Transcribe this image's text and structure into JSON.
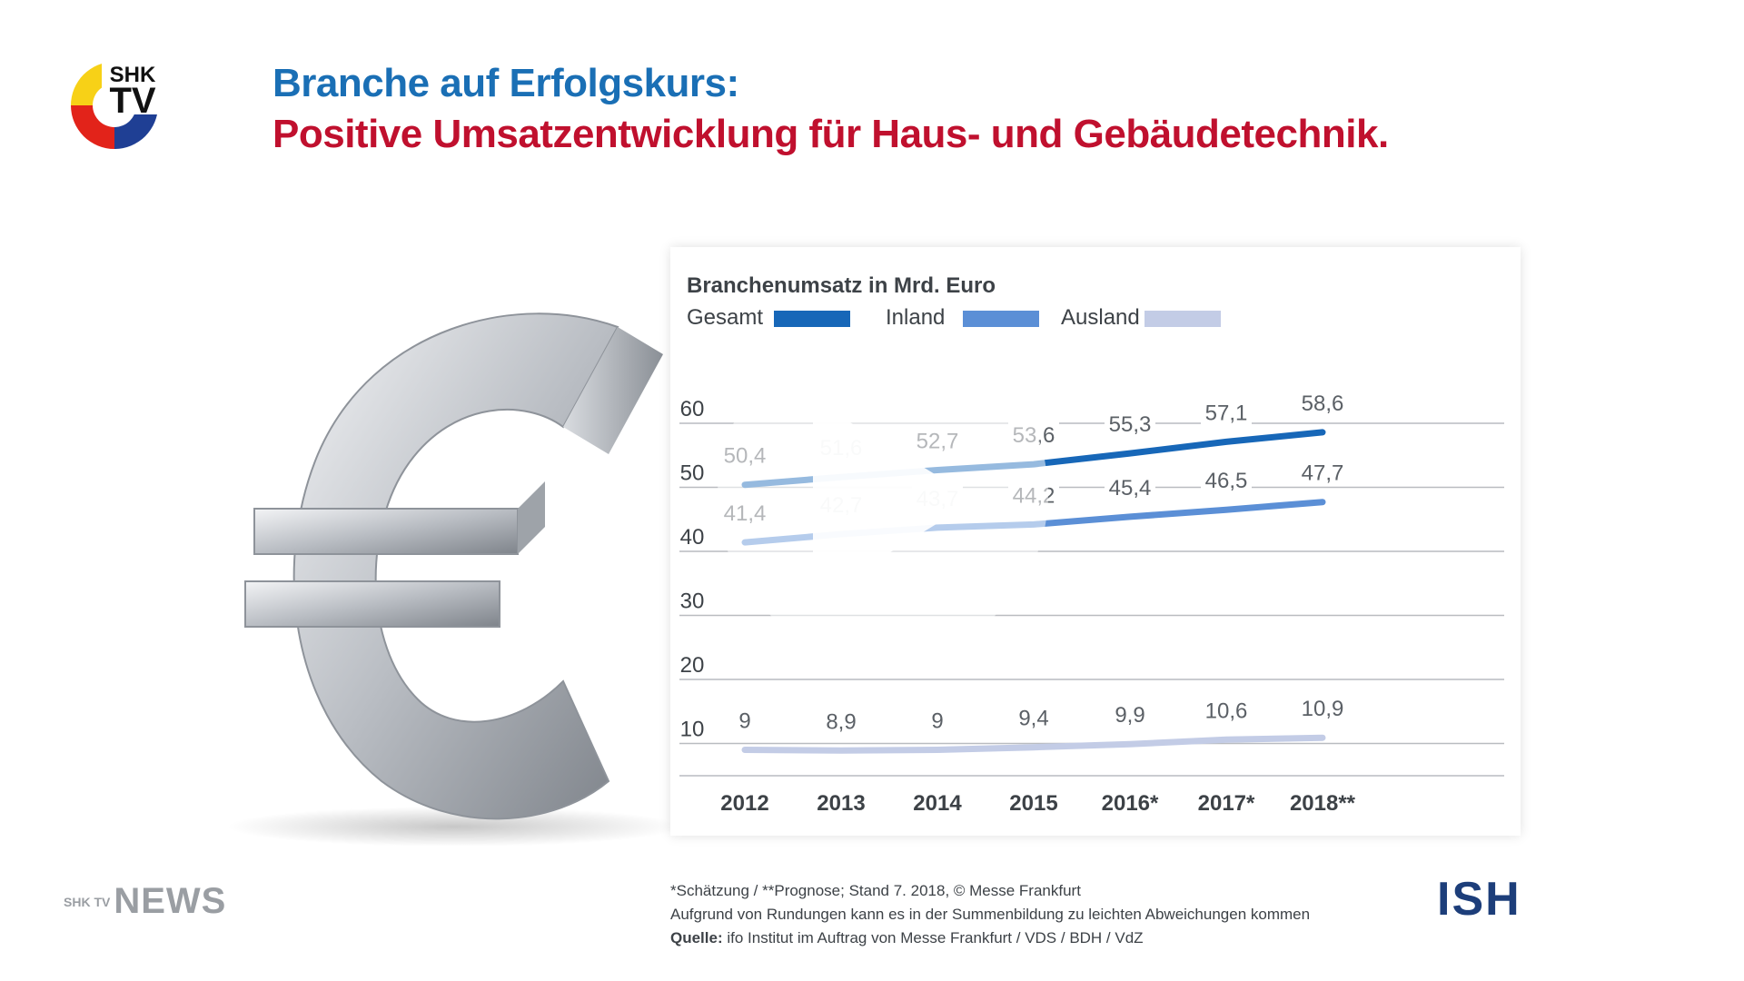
{
  "header": {
    "logo": "SHK TV",
    "title_line1": "Branche auf Erfolgskurs:",
    "title_line2": "Positive Umsatzentwicklung für Haus- und Gebäudetechnik."
  },
  "colors": {
    "title_blue": "#1a6fb5",
    "title_red": "#c0102e",
    "gesamt": "#1767b8",
    "inland": "#5b8fd6",
    "ausland": "#c3cce6"
  },
  "chart_data": {
    "type": "line",
    "title": "Branchenumsatz in Mrd. Euro",
    "categories": [
      "2012",
      "2013",
      "2014",
      "2015",
      "2016*",
      "2017*",
      "2018**"
    ],
    "series": [
      {
        "name": "Gesamt",
        "values": [
          50.4,
          51.6,
          52.7,
          53.6,
          55.3,
          57.1,
          58.6
        ],
        "labels": [
          "50,4",
          "51,6",
          "52,7",
          "53,6",
          "55,3",
          "57,1",
          "58,6"
        ]
      },
      {
        "name": "Inland",
        "values": [
          41.4,
          42.7,
          43.7,
          44.2,
          45.4,
          46.5,
          47.7
        ],
        "labels": [
          "41,4",
          "42,7",
          "43,7",
          "44,2",
          "45,4",
          "46,5",
          "47,7"
        ]
      },
      {
        "name": "Ausland",
        "values": [
          9,
          8.9,
          9,
          9.4,
          9.9,
          10.6,
          10.9
        ],
        "labels": [
          "9",
          "8,9",
          "9",
          "9,4",
          "9,9",
          "10,6",
          "10,9"
        ]
      }
    ],
    "y_ticks": [
      "10",
      "20",
      "30",
      "40",
      "50",
      "60"
    ],
    "ylim": [
      10,
      60
    ],
    "grid": true,
    "legend": "top-left"
  },
  "footer": {
    "news_small": "SHK TV",
    "news_word": "NEWS",
    "note_line1": "*Schätzung / **Prognose; Stand 7. 2018, © Messe Frankfurt",
    "note_line2": "Aufgrund von Rundungen kann es in der Summenbildung zu leichten Abweichungen kommen",
    "source_label": "Quelle:",
    "source_text": " ifo Institut im Auftrag von Messe Frankfurt / VDS / BDH / VdZ",
    "ish": "ISH"
  },
  "video": {
    "play_icon": "play-icon"
  }
}
